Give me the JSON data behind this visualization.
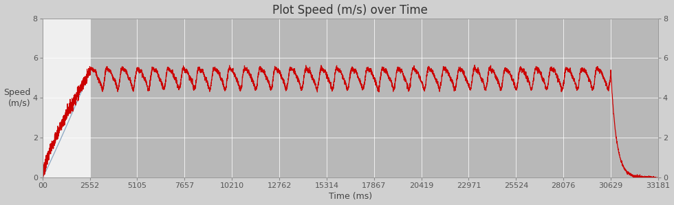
{
  "title": "Plot Speed (m/s) over Time",
  "xlabel": "Time (ms)",
  "ylabel": "Speed\n(m/s)",
  "ylim": [
    0,
    8
  ],
  "xlim": [
    0,
    33181
  ],
  "xtick_values": [
    0,
    2552,
    5105,
    7657,
    10210,
    12762,
    15314,
    17867,
    20419,
    22971,
    25524,
    28076,
    30629,
    33181
  ],
  "xtick_labels": [
    "00",
    "2552",
    "5105",
    "7657",
    "10210",
    "12762",
    "15314",
    "17867",
    "20419",
    "22971",
    "25524",
    "28076",
    "30629",
    "33181"
  ],
  "ytick_values": [
    0,
    2,
    4,
    6,
    8
  ],
  "white_region_end": 2552,
  "acceleration_end": 2552,
  "deceleration_start": 30629,
  "run_end": 33181,
  "cruise_speed_mean": 5.05,
  "cruise_speed_amplitude": 0.45,
  "line_color_red": "#cc0000",
  "line_color_blue": "#7799bb",
  "title_fontsize": 12,
  "label_fontsize": 9,
  "tick_fontsize": 8,
  "line_width": 0.9,
  "plot_bg_light": "#efefef",
  "plot_bg_dark": "#b8b8b8",
  "fig_bg": "#d0d0d0",
  "grid_color": "#ffffff",
  "num_cruise_oscillations": 34,
  "cruise_points": 5000,
  "accel_points": 600,
  "decel_points": 300
}
